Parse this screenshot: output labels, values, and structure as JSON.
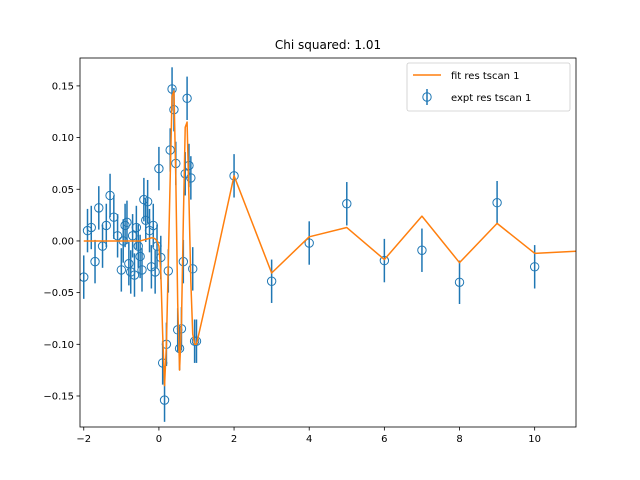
{
  "chart_data": {
    "type": "scatter",
    "title": "Chi squared: 1.01",
    "xlabel": "",
    "ylabel": "",
    "xlim": [
      -2.1,
      11.1
    ],
    "ylim": [
      -0.18,
      0.177
    ],
    "xticks": [
      -2,
      0,
      2,
      4,
      6,
      8,
      10
    ],
    "xtick_labels": [
      "−2",
      "0",
      "2",
      "4",
      "6",
      "8",
      "10"
    ],
    "yticks": [
      -0.15,
      -0.1,
      -0.05,
      0.0,
      0.05,
      0.1,
      0.15
    ],
    "ytick_labels": [
      "−0.15",
      "−0.10",
      "−0.05",
      "0.00",
      "0.05",
      "0.10",
      "0.15"
    ],
    "grid": false,
    "legend_position": "top-right",
    "series": [
      {
        "name": "fit res tscan 1",
        "kind": "line",
        "color": "#ff7f0e",
        "x": [
          -2.0,
          -1.0,
          -0.5,
          -0.3,
          -0.2,
          -0.15,
          -0.1,
          -0.05,
          0.0,
          0.05,
          0.1,
          0.15,
          0.2,
          0.25,
          0.3,
          0.35,
          0.4,
          0.45,
          0.5,
          0.55,
          0.6,
          0.65,
          0.7,
          0.75,
          0.8,
          0.85,
          0.9,
          0.95,
          1.0,
          1.5,
          2.0,
          3.0,
          4.0,
          5.0,
          6.0,
          7.0,
          8.0,
          9.0,
          10.0,
          11.1
        ],
        "y": [
          0.0,
          0.0,
          0.0,
          0.002,
          0.003,
          0.003,
          0.002,
          0.0,
          -0.005,
          -0.03,
          -0.09,
          -0.14,
          -0.1,
          -0.02,
          0.06,
          0.14,
          0.145,
          0.06,
          -0.06,
          -0.125,
          -0.08,
          0.02,
          0.11,
          0.115,
          0.04,
          -0.04,
          -0.09,
          -0.1,
          -0.1,
          -0.02,
          0.063,
          -0.031,
          0.004,
          0.013,
          -0.018,
          0.024,
          -0.021,
          0.017,
          -0.012,
          -0.01
        ]
      },
      {
        "name": "expt res tscan 1",
        "kind": "errorbar",
        "color": "#1f77b4",
        "yerr": 0.021,
        "x": [
          -2.0,
          -1.9,
          -1.8,
          -1.7,
          -1.6,
          -1.5,
          -1.4,
          -1.3,
          -1.2,
          -1.1,
          -1.0,
          -0.95,
          -0.9,
          -0.85,
          -0.8,
          -0.75,
          -0.7,
          -0.65,
          -0.6,
          -0.55,
          -0.5,
          -0.45,
          -0.4,
          -0.35,
          -0.3,
          -0.25,
          -0.2,
          -0.15,
          -0.1,
          -0.05,
          0.0,
          0.05,
          0.1,
          0.15,
          0.2,
          0.25,
          0.3,
          0.35,
          0.4,
          0.45,
          0.5,
          0.55,
          0.6,
          0.65,
          0.7,
          0.75,
          0.8,
          0.85,
          0.9,
          0.95,
          1.0,
          2.0,
          3.0,
          4.0,
          5.0,
          6.0,
          7.0,
          8.0,
          9.0,
          10.0
        ],
        "y": [
          -0.035,
          0.01,
          0.013,
          -0.02,
          0.032,
          -0.005,
          0.015,
          0.044,
          0.023,
          0.005,
          -0.028,
          0.0,
          0.015,
          0.018,
          -0.022,
          -0.03,
          0.005,
          -0.033,
          0.013,
          -0.005,
          -0.015,
          -0.028,
          0.04,
          0.02,
          0.038,
          0.01,
          -0.025,
          0.015,
          -0.03,
          -0.005,
          0.07,
          -0.016,
          -0.118,
          -0.154,
          -0.1,
          -0.029,
          0.088,
          0.147,
          0.127,
          0.075,
          -0.086,
          -0.104,
          -0.085,
          -0.02,
          0.065,
          0.138,
          0.073,
          0.061,
          -0.027,
          -0.097,
          -0.097,
          0.063,
          -0.039,
          -0.002,
          0.036,
          -0.019,
          -0.009,
          -0.04,
          0.037,
          -0.025
        ]
      }
    ]
  }
}
